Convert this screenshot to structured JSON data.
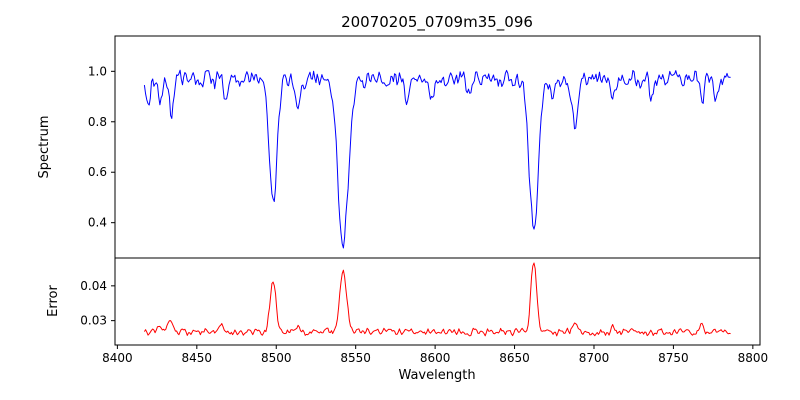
{
  "title": "20070205_0709m35_096",
  "xlabel": "Wavelength",
  "chart_data": [
    {
      "type": "line",
      "name": "spectrum",
      "ylabel": "Spectrum",
      "color": "#0000ff",
      "legend": "none",
      "grid": false,
      "xlim": [
        8398.5,
        8804.5
      ],
      "ylim": [
        0.26,
        1.14
      ],
      "xticks": [
        8400,
        8450,
        8500,
        8550,
        8600,
        8650,
        8700,
        8750,
        8800
      ],
      "xtick_labels": [
        "8400",
        "8450",
        "8500",
        "8550",
        "8600",
        "8650",
        "8700",
        "8750",
        "8800"
      ],
      "yticks": [
        0.4,
        0.6,
        0.8,
        1.0
      ],
      "ytick_labels": [
        "0.4",
        "0.6",
        "0.8",
        "1.0"
      ],
      "x_start": 8417,
      "x_end": 8786,
      "step": 0.75,
      "baseline": 0.97,
      "noise": 0.04,
      "seed": 42,
      "features": [
        {
          "center": 8419.5,
          "amplitude": -0.13,
          "width": 1.2
        },
        {
          "center": 8427.0,
          "amplitude": -0.1,
          "width": 1.2
        },
        {
          "center": 8434.0,
          "amplitude": -0.16,
          "width": 1.4
        },
        {
          "center": 8468.0,
          "amplitude": -0.09,
          "width": 1.3
        },
        {
          "center": 8498.0,
          "amplitude": -0.5,
          "width": 2.4
        },
        {
          "center": 8514.0,
          "amplitude": -0.12,
          "width": 1.4
        },
        {
          "center": 8542.1,
          "amplitude": -0.645,
          "width": 3.4
        },
        {
          "center": 8582.0,
          "amplitude": -0.07,
          "width": 1.2
        },
        {
          "center": 8598.0,
          "amplitude": -0.08,
          "width": 1.3
        },
        {
          "center": 8621.0,
          "amplitude": -0.07,
          "width": 1.2
        },
        {
          "center": 8662.1,
          "amplitude": -0.6,
          "width": 2.9
        },
        {
          "center": 8674.0,
          "amplitude": -0.1,
          "width": 1.2
        },
        {
          "center": 8688.0,
          "amplitude": -0.2,
          "width": 1.8
        },
        {
          "center": 8712.0,
          "amplitude": -0.09,
          "width": 1.3
        },
        {
          "center": 8736.0,
          "amplitude": -0.08,
          "width": 1.2
        },
        {
          "center": 8768.0,
          "amplitude": -0.09,
          "width": 1.2
        },
        {
          "center": 8777.0,
          "amplitude": -0.1,
          "width": 1.2
        }
      ]
    },
    {
      "type": "line",
      "name": "error",
      "ylabel": "Error",
      "color": "#ff0000",
      "legend": "none",
      "grid": false,
      "xlim": [
        8398.5,
        8804.5
      ],
      "ylim": [
        0.023,
        0.048
      ],
      "xticks": [
        8400,
        8450,
        8500,
        8550,
        8600,
        8650,
        8700,
        8750,
        8800
      ],
      "xtick_labels": [
        "8400",
        "8450",
        "8500",
        "8550",
        "8600",
        "8650",
        "8700",
        "8750",
        "8800"
      ],
      "yticks": [
        0.03,
        0.04
      ],
      "ytick_labels": [
        "0.03",
        "0.04"
      ],
      "x_start": 8417,
      "x_end": 8786,
      "step": 0.75,
      "baseline": 0.0267,
      "noise": 0.0012,
      "seed": 7,
      "features": [
        {
          "center": 8427.0,
          "amplitude": 0.0025,
          "width": 1.5
        },
        {
          "center": 8433.0,
          "amplitude": 0.0035,
          "width": 1.5
        },
        {
          "center": 8465.0,
          "amplitude": 0.0018,
          "width": 1.5
        },
        {
          "center": 8498.0,
          "amplitude": 0.015,
          "width": 1.8
        },
        {
          "center": 8514.0,
          "amplitude": 0.002,
          "width": 1.5
        },
        {
          "center": 8542.1,
          "amplitude": 0.017,
          "width": 2.2
        },
        {
          "center": 8662.1,
          "amplitude": 0.0205,
          "width": 1.8
        },
        {
          "center": 8688.0,
          "amplitude": 0.003,
          "width": 1.5
        },
        {
          "center": 8712.0,
          "amplitude": 0.0015,
          "width": 1.4
        },
        {
          "center": 8768.0,
          "amplitude": 0.002,
          "width": 1.4
        }
      ]
    }
  ]
}
